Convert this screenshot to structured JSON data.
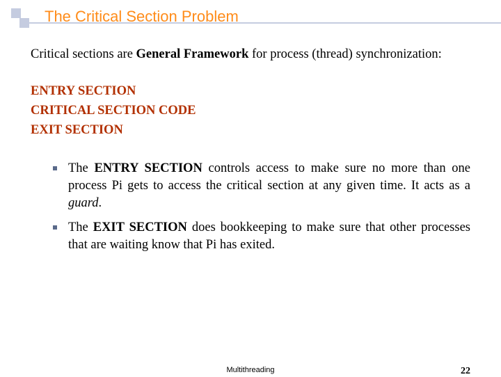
{
  "colors": {
    "title_color": "#ff8c1a",
    "accent_line": "#c5cce0",
    "section_color": "#b23000",
    "text_color": "#000000",
    "bullet_color": "#5a6a8a",
    "background": "#ffffff"
  },
  "typography": {
    "title_font": "Arial",
    "title_size_pt": 17,
    "body_font": "Times New Roman",
    "body_size_pt": 14,
    "footer_size_pt": 8
  },
  "title": "The Critical Section Problem",
  "intro_pre": "Critical sections are ",
  "intro_bold": "General Framework",
  "intro_post": " for process (thread) synchronization:",
  "sections": {
    "entry": "ENTRY SECTION",
    "code": "CRITICAL SECTION CODE",
    "exit": "EXIT SECTION"
  },
  "bullet1_a": "The ",
  "bullet1_b": "ENTRY SECTION",
  "bullet1_c": " controls access to make sure no more than one process Pi gets to access the critical section at any given time. It acts as a ",
  "bullet1_d": "guard",
  "bullet1_e": ".",
  "bullet2_a": "The ",
  "bullet2_b": "EXIT SECTION",
  "bullet2_c": " does bookkeeping to make sure that other processes that are waiting know that Pi has exited.",
  "footer_center": "Multithreading",
  "footer_page": "22"
}
